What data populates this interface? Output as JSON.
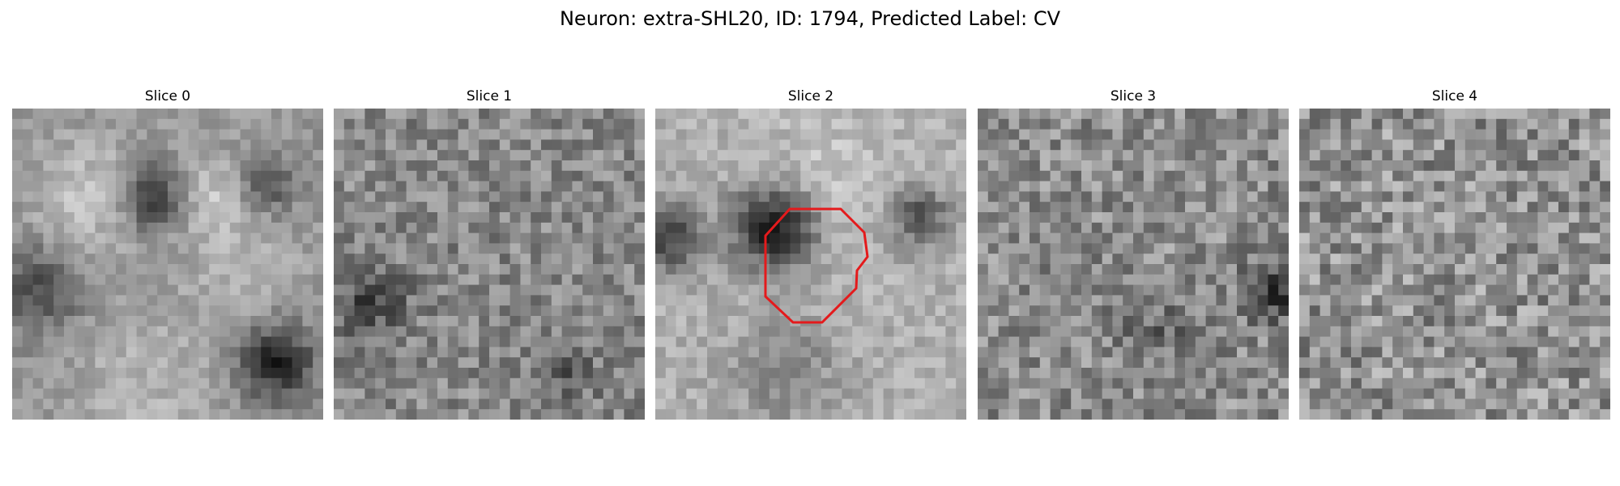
{
  "figure": {
    "title": "Neuron: extra-SHL20, ID: 1794, Predicted Label: CV"
  },
  "panels": [
    {
      "title": "Slice 0"
    },
    {
      "title": "Slice 1"
    },
    {
      "title": "Slice 2"
    },
    {
      "title": "Slice 3"
    },
    {
      "title": "Slice 4"
    }
  ],
  "colors": {
    "roi_outline": "#e41a1c",
    "colormap": "gray"
  },
  "icons": []
}
